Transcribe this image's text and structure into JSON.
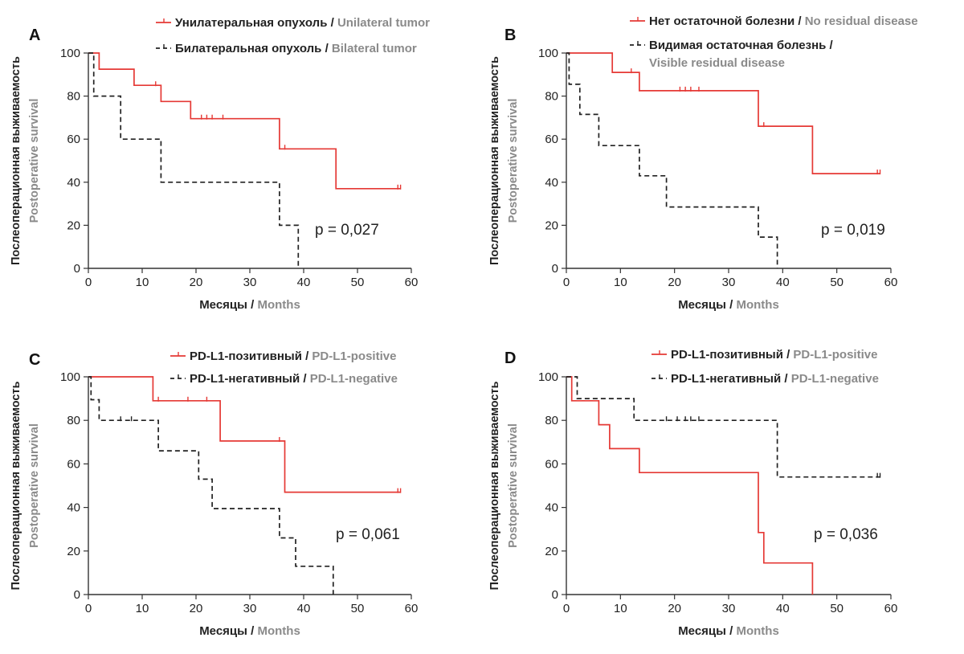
{
  "colors": {
    "red": "#e53935",
    "black": "#222222",
    "gray": "#8a8a8a",
    "axis": "#333333"
  },
  "chart_data": [
    {
      "panel": "A",
      "type": "line",
      "p_value": "p = 0,027",
      "xlabel_ru": "Месяцы",
      "xlabel_en": "Months",
      "ylabel_ru": "Послеоперационная выживаемость",
      "ylabel_en": "Postoperative survival",
      "xlim": [
        0,
        60
      ],
      "ylim": [
        0,
        100
      ],
      "xticks": [
        "0",
        "10",
        "20",
        "30",
        "40",
        "50",
        "60"
      ],
      "yticks": [
        "0",
        "20",
        "40",
        "60",
        "80",
        "100"
      ],
      "series": [
        {
          "name_ru": "Унилатеральная опухоль",
          "name_en": "Unilateral tumor",
          "style": "solid",
          "color": "#e53935",
          "x": [
            0,
            2,
            2,
            8.5,
            8.5,
            13.5,
            13.5,
            19,
            19,
            35.5,
            35.5,
            46,
            46,
            58
          ],
          "y": [
            100,
            100,
            92.5,
            92.5,
            85,
            85,
            77.5,
            77.5,
            69.5,
            69.5,
            55.5,
            55.5,
            37,
            37
          ],
          "censor": [
            [
              12.5,
              85
            ],
            [
              21,
              69.5
            ],
            [
              22,
              69.5
            ],
            [
              23,
              69.5
            ],
            [
              25,
              69.5
            ],
            [
              36.5,
              55.5
            ],
            [
              57.5,
              37
            ],
            [
              58,
              37
            ]
          ]
        },
        {
          "name_ru": "Билатеральная опухоль",
          "name_en": "Bilateral tumor",
          "style": "dashed",
          "color": "#222222",
          "x": [
            0,
            1,
            1,
            6,
            6,
            13.5,
            13.5,
            35.5,
            35.5,
            39,
            39
          ],
          "y": [
            100,
            100,
            80,
            80,
            60,
            60,
            40,
            40,
            20,
            20,
            0
          ],
          "censor": []
        }
      ]
    },
    {
      "panel": "B",
      "type": "line",
      "p_value": "p = 0,019",
      "xlabel_ru": "Месяцы",
      "xlabel_en": "Months",
      "ylabel_ru": "Послеоперационная выживаемость",
      "ylabel_en": "Postoperative survival",
      "xlim": [
        0,
        60
      ],
      "ylim": [
        0,
        100
      ],
      "xticks": [
        "0",
        "10",
        "20",
        "30",
        "40",
        "50",
        "60"
      ],
      "yticks": [
        "0",
        "20",
        "40",
        "60",
        "80",
        "100"
      ],
      "series": [
        {
          "name_ru": "Нет остаточной болезни",
          "name_en": "No residual disease",
          "style": "solid",
          "color": "#e53935",
          "x": [
            0,
            8.5,
            8.5,
            13.5,
            13.5,
            35.5,
            35.5,
            45.5,
            45.5,
            58
          ],
          "y": [
            100,
            100,
            91,
            91,
            82.5,
            82.5,
            66,
            66,
            44,
            44
          ],
          "censor": [
            [
              12,
              91
            ],
            [
              21,
              82.5
            ],
            [
              22,
              82.5
            ],
            [
              23,
              82.5
            ],
            [
              24.5,
              82.5
            ],
            [
              36.5,
              66
            ],
            [
              57.5,
              44
            ],
            [
              58,
              44
            ]
          ]
        },
        {
          "name_ru": "Видимая остаточная болезнь",
          "name_en": "Visible residual disease",
          "style": "dashed",
          "color": "#222222",
          "x": [
            0,
            0.5,
            0.5,
            2.5,
            2.5,
            6,
            6,
            13.5,
            13.5,
            18.5,
            18.5,
            35.5,
            35.5,
            39,
            39
          ],
          "y": [
            100,
            100,
            85.5,
            85.5,
            71.5,
            71.5,
            57,
            57,
            43,
            43,
            28.5,
            28.5,
            14.5,
            14.5,
            0
          ],
          "censor": []
        }
      ]
    },
    {
      "panel": "C",
      "type": "line",
      "p_value": "p = 0,061",
      "xlabel_ru": "Месяцы",
      "xlabel_en": "Months",
      "ylabel_ru": "Послеоперационная выживаемость",
      "ylabel_en": "Postoperative survival",
      "xlim": [
        0,
        60
      ],
      "ylim": [
        0,
        100
      ],
      "xticks": [
        "0",
        "10",
        "20",
        "30",
        "40",
        "50",
        "60"
      ],
      "yticks": [
        "0",
        "20",
        "40",
        "60",
        "80",
        "100"
      ],
      "series": [
        {
          "name_ru": "PD-L1-позитивный",
          "name_en": "PD-L1-positive",
          "style": "solid",
          "color": "#e53935",
          "x": [
            0,
            12,
            12,
            24.5,
            24.5,
            36.5,
            36.5,
            58
          ],
          "y": [
            100,
            100,
            89,
            89,
            70.5,
            70.5,
            47,
            47
          ],
          "censor": [
            [
              13,
              89
            ],
            [
              18.5,
              89
            ],
            [
              22,
              89
            ],
            [
              35.5,
              70.5
            ],
            [
              57.5,
              47
            ],
            [
              58,
              47
            ]
          ]
        },
        {
          "name_ru": "PD-L1-негативный",
          "name_en": "PD-L1-negative",
          "style": "dashed",
          "color": "#222222",
          "x": [
            0,
            0.5,
            0.5,
            2,
            2,
            13,
            13,
            20.5,
            20.5,
            23,
            23,
            35.5,
            35.5,
            38.5,
            38.5,
            45.5,
            45.5
          ],
          "y": [
            100,
            100,
            89.5,
            89.5,
            80,
            80,
            66,
            66,
            53,
            53,
            39.5,
            39.5,
            26,
            26,
            13,
            13,
            0
          ],
          "censor": [
            [
              6,
              80
            ],
            [
              8,
              80
            ]
          ]
        }
      ]
    },
    {
      "panel": "D",
      "type": "line",
      "p_value": "p = 0,036",
      "xlabel_ru": "Месяцы",
      "xlabel_en": "Months",
      "ylabel_ru": "Послеоперационная выживаемость",
      "ylabel_en": "Postoperative survival",
      "xlim": [
        0,
        60
      ],
      "ylim": [
        0,
        100
      ],
      "xticks": [
        "0",
        "10",
        "20",
        "30",
        "40",
        "50",
        "60"
      ],
      "yticks": [
        "0",
        "20",
        "40",
        "60",
        "80",
        "100"
      ],
      "series": [
        {
          "name_ru": "PD-L1-позитивный",
          "name_en": "PD-L1-positive",
          "style": "solid",
          "color": "#e53935",
          "x": [
            0,
            1,
            1,
            6,
            6,
            8,
            8,
            13.5,
            13.5,
            35.5,
            35.5,
            36.5,
            36.5,
            45.5,
            45.5
          ],
          "y": [
            100,
            100,
            89,
            89,
            78,
            78,
            67,
            67,
            56,
            56,
            28.5,
            28.5,
            14.5,
            14.5,
            0
          ],
          "censor": []
        },
        {
          "name_ru": "PD-L1-негативный",
          "name_en": "PD-L1-negative",
          "style": "dashed",
          "color": "#222222",
          "x": [
            0,
            2,
            2,
            12.5,
            12.5,
            39,
            39,
            58
          ],
          "y": [
            100,
            100,
            90,
            90,
            80,
            80,
            54,
            54
          ],
          "censor": [
            [
              18.5,
              80
            ],
            [
              20.5,
              80
            ],
            [
              22,
              80
            ],
            [
              23,
              80
            ],
            [
              24.5,
              80
            ],
            [
              57.5,
              54
            ],
            [
              58,
              54
            ]
          ]
        }
      ]
    }
  ]
}
